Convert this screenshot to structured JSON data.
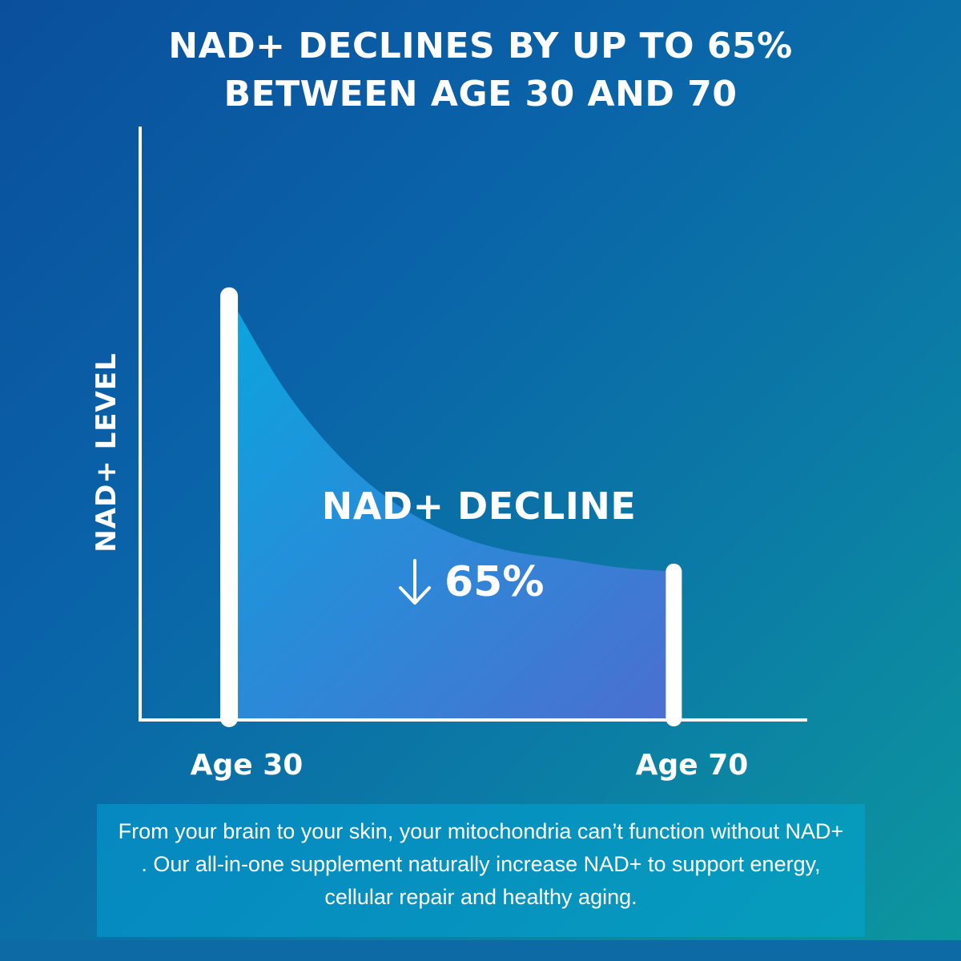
{
  "title_lines": [
    "NAD+ DECLINES BY UP TO 65%",
    "BETWEEN AGE 30 AND 70"
  ],
  "chart_data": {
    "type": "area",
    "title": "NAD+ DECLINES BY UP TO 65% BETWEEN AGE 30 AND 70",
    "ylabel": "NAD+ LEVEL",
    "xlabel": "",
    "x_tick_labels": [
      "Age 30",
      "Age 70"
    ],
    "x": [
      30,
      35,
      40,
      45,
      50,
      55,
      60,
      65,
      70
    ],
    "y": [
      100,
      78,
      62,
      51,
      44,
      40,
      38,
      36,
      35
    ],
    "xlim": [
      22,
      82
    ],
    "ylim": [
      0,
      140
    ],
    "grid": false,
    "legend": "none",
    "annotation": {
      "label": "NAD+ DECLINE",
      "value": "65%",
      "direction_icon": "down-arrow-icon"
    },
    "colors": {
      "fill_start": "#0aa5df",
      "fill_end": "#4b6fd1",
      "axis": "#ffffff",
      "marker_lines": "#ffffff"
    }
  },
  "caption": "From your brain to your skin, your mitochondria can’t function without NAD+ . Our all-in-one supplement naturally increase NAD+ to support energy, cellular repair and healthy aging."
}
